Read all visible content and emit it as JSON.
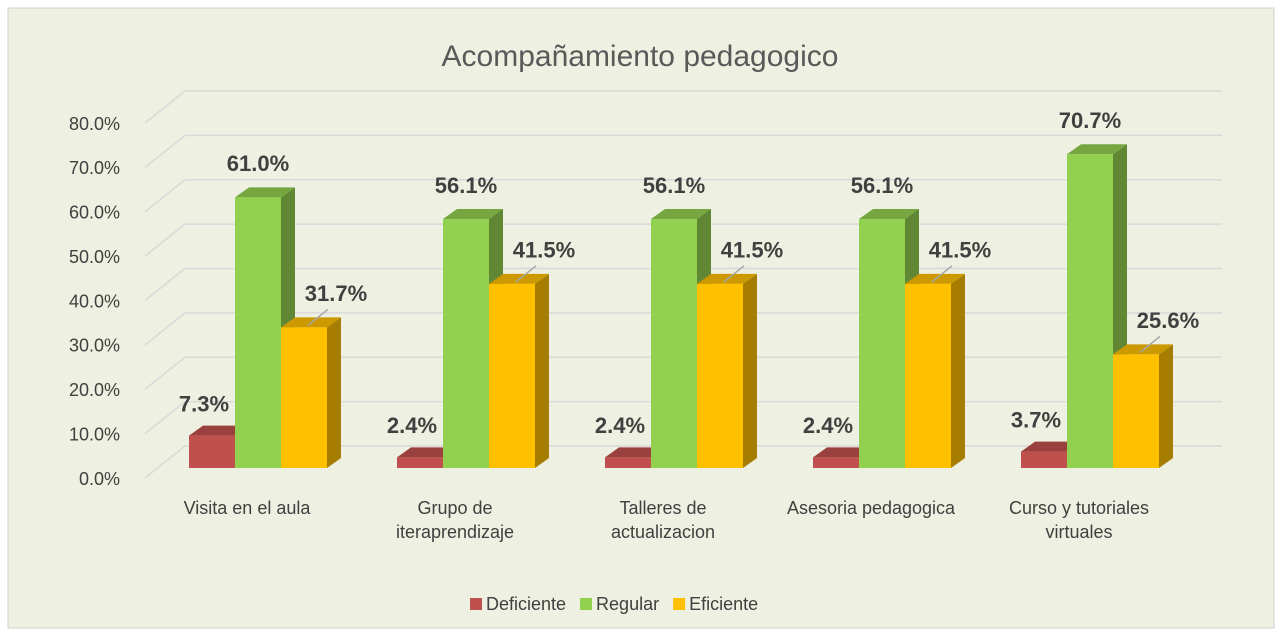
{
  "chart_data": {
    "type": "bar3d",
    "title": "Acompañamiento pedagogico",
    "categories": [
      "Visita en el aula",
      "Grupo de iteraprendizaje",
      "Talleres de actualizacion",
      "Asesoria pedagogica",
      "Curso y tutoriales virtuales"
    ],
    "series": [
      {
        "name": "Deficiente",
        "color": "#c0504d",
        "values": [
          7.3,
          2.4,
          2.4,
          2.4,
          3.7
        ],
        "value_labels": [
          "7.3%",
          "2.4%",
          "2.4%",
          "2.4%",
          "3.7%"
        ]
      },
      {
        "name": "Regular",
        "color": "#92d050",
        "values": [
          61.0,
          56.1,
          56.1,
          56.1,
          70.7
        ],
        "value_labels": [
          "61.0%",
          "56.1%",
          "56.1%",
          "56.1%",
          "70.7%"
        ]
      },
      {
        "name": "Eficiente",
        "color": "#ffc000",
        "values": [
          31.7,
          41.5,
          41.5,
          41.5,
          25.6
        ],
        "value_labels": [
          "31.7%",
          "41.5%",
          "41.5%",
          "41.5%",
          "25.6%"
        ]
      }
    ],
    "ylim": [
      0,
      80
    ],
    "yticks": [
      {
        "value": 0,
        "label": "0.0%"
      },
      {
        "value": 10,
        "label": "10.0%"
      },
      {
        "value": 20,
        "label": "20.0%"
      },
      {
        "value": 30,
        "label": "30.0%"
      },
      {
        "value": 40,
        "label": "40.0%"
      },
      {
        "value": 50,
        "label": "50.0%"
      },
      {
        "value": 60,
        "label": "60.0%"
      },
      {
        "value": 70,
        "label": "70.0%"
      },
      {
        "value": 80,
        "label": "80.0%"
      }
    ],
    "grid": true,
    "legend": "bottom"
  }
}
